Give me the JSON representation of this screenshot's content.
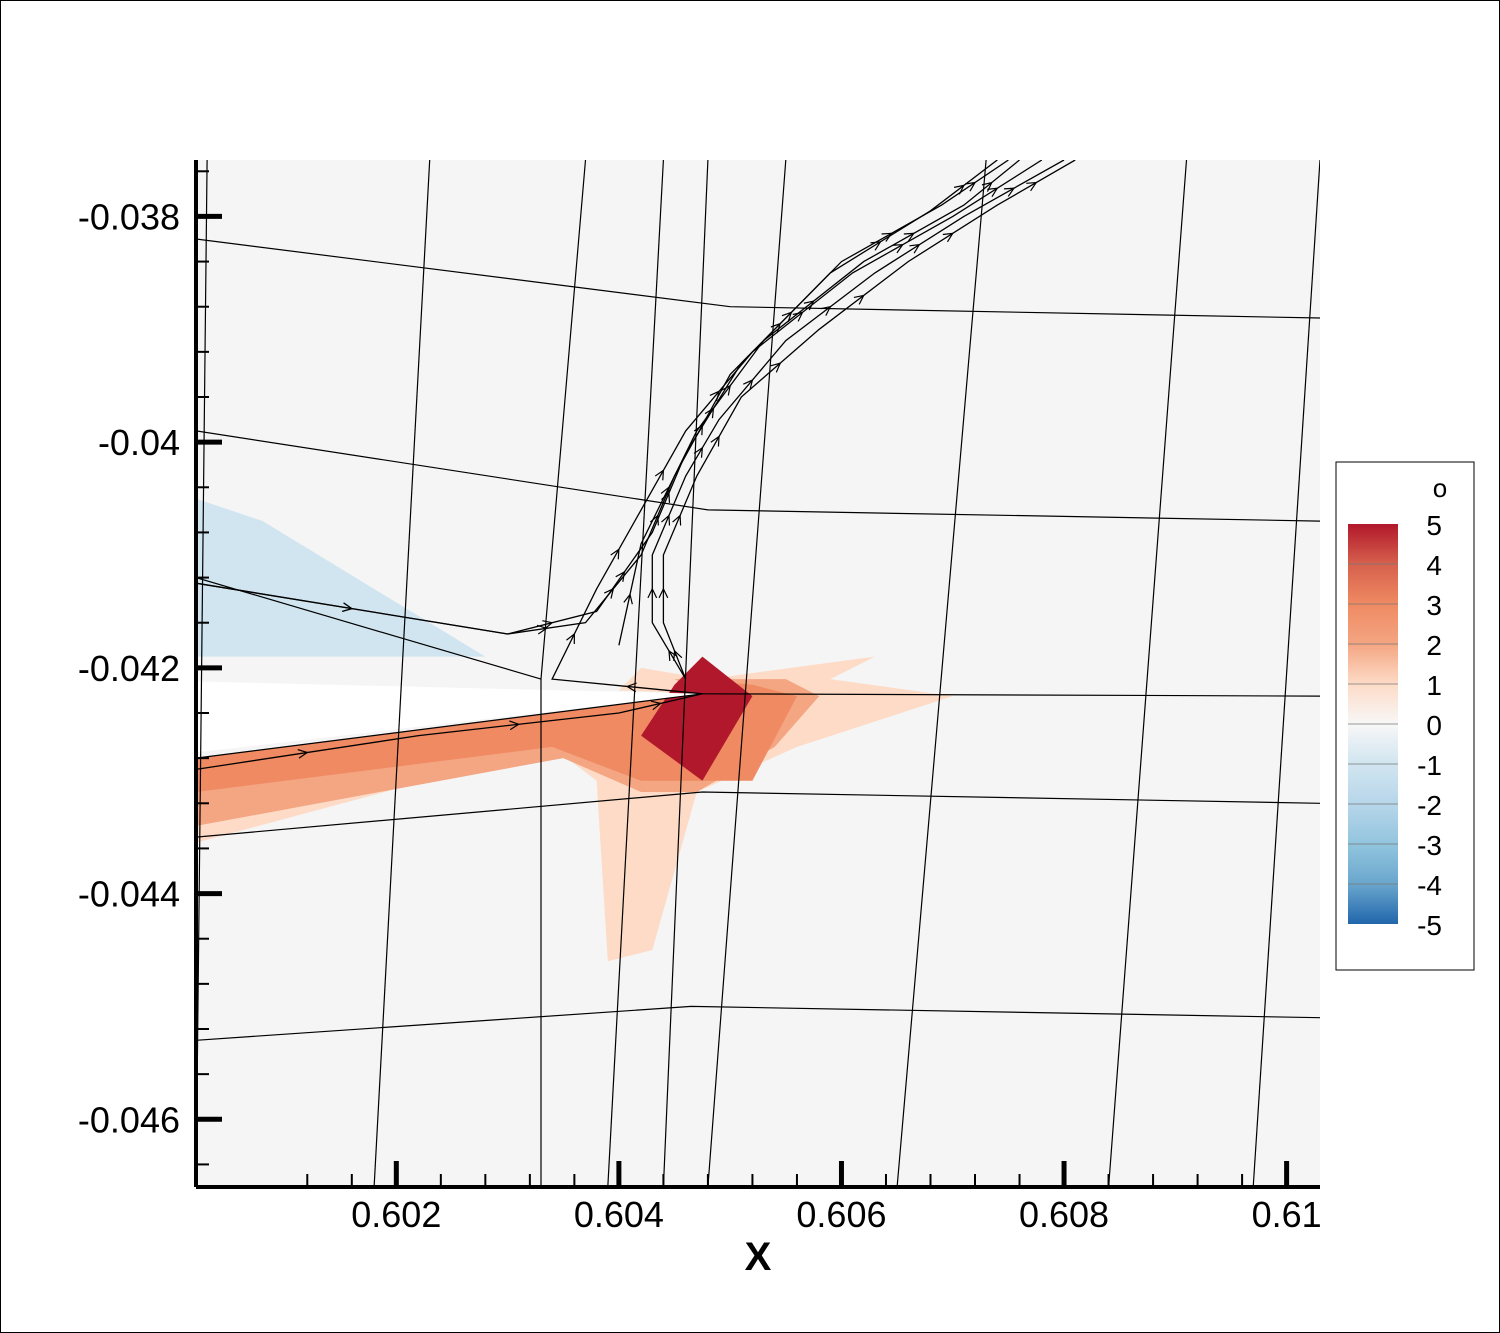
{
  "chart_data": {
    "type": "heatmap",
    "xlabel": "X",
    "ylabel": "",
    "xlim": [
      0.6002,
      0.6103
    ],
    "ylim": [
      -0.0466,
      -0.0375
    ],
    "x_ticks": [
      0.602,
      0.604,
      0.606,
      0.608,
      0.61
    ],
    "x_tick_labels": [
      "0.602",
      "0.604",
      "0.606",
      "0.608",
      "0.61"
    ],
    "y_ticks": [
      -0.038,
      -0.04,
      -0.042,
      -0.044,
      -0.046
    ],
    "y_tick_labels": [
      "-0.038",
      "-0.04",
      "-0.042",
      "-0.044",
      "-0.046"
    ],
    "grid": false,
    "legend": {
      "placement": "right",
      "title": "o",
      "levels": [
        5,
        4,
        3,
        2,
        1,
        0,
        -1,
        -2,
        -3,
        -4,
        -5
      ],
      "level_labels": [
        "5",
        "4",
        "3",
        "2",
        "1",
        "0",
        "-1",
        "-2",
        "-3",
        "-4",
        "-5"
      ],
      "colors": [
        "#b2182b",
        "#d6604d",
        "#ef8a62",
        "#f4a582",
        "#fddbc7",
        "#f7f7f7",
        "#d1e5f0",
        "#b7d6ea",
        "#92c5de",
        "#6aa6cd",
        "#2166ac"
      ]
    },
    "background_color": "#f5f5f5",
    "body_color": "#ffffff",
    "airfoil_body": [
      [
        0.6002,
        -0.04212
      ],
      [
        0.60475,
        -0.04223
      ],
      [
        0.6002,
        -0.04275
      ]
    ],
    "mesh_lines": [
      [
        [
          0.6002,
          -0.0382
        ],
        [
          0.605,
          -0.0388
        ],
        [
          0.6103,
          -0.0389
        ]
      ],
      [
        [
          0.6002,
          -0.0399
        ],
        [
          0.6048,
          -0.0406
        ],
        [
          0.6103,
          -0.0407
        ]
      ],
      [
        [
          0.6002,
          -0.0412
        ],
        [
          0.6033,
          -0.0421
        ]
      ],
      [
        [
          0.60475,
          -0.04223
        ],
        [
          0.6103,
          -0.04225
        ]
      ],
      [
        [
          0.6002,
          -0.0428
        ],
        [
          0.60475,
          -0.04223
        ]
      ],
      [
        [
          0.6002,
          -0.0435
        ],
        [
          0.60475,
          -0.0431
        ],
        [
          0.6103,
          -0.0432
        ]
      ],
      [
        [
          0.6002,
          -0.0453
        ],
        [
          0.60465,
          -0.045
        ],
        [
          0.6103,
          -0.0451
        ]
      ],
      [
        [
          0.6003,
          -0.0375
        ],
        [
          0.6002,
          -0.0466
        ]
      ],
      [
        [
          0.6023,
          -0.0375
        ],
        [
          0.6018,
          -0.0466
        ]
      ],
      [
        [
          0.6037,
          -0.0375
        ],
        [
          0.6033,
          -0.0421
        ],
        [
          0.6033,
          -0.0466
        ]
      ],
      [
        [
          0.6044,
          -0.0375
        ],
        [
          0.6039,
          -0.0466
        ]
      ],
      [
        [
          0.6048,
          -0.0375
        ],
        [
          0.6044,
          -0.0466
        ]
      ],
      [
        [
          0.6055,
          -0.0375
        ],
        [
          0.6048,
          -0.0466
        ]
      ],
      [
        [
          0.6073,
          -0.0375
        ],
        [
          0.6065,
          -0.0466
        ]
      ],
      [
        [
          0.6091,
          -0.0375
        ],
        [
          0.6084,
          -0.0466
        ]
      ],
      [
        [
          0.6103,
          -0.0375
        ],
        [
          0.6097,
          -0.0466
        ]
      ]
    ],
    "contour_regions": [
      {
        "level": 1,
        "points": [
          [
            0.6042,
            -0.042
          ],
          [
            0.6048,
            -0.0421
          ],
          [
            0.6063,
            -0.0419
          ],
          [
            0.6059,
            -0.0421
          ],
          [
            0.607,
            -0.04225
          ],
          [
            0.6056,
            -0.0427
          ],
          [
            0.6047,
            -0.0431
          ],
          [
            0.6043,
            -0.0445
          ],
          [
            0.6039,
            -0.0446
          ],
          [
            0.6038,
            -0.043
          ],
          [
            0.6034,
            -0.0427
          ],
          [
            0.6002,
            -0.04355
          ],
          [
            0.6002,
            -0.0428
          ],
          [
            0.60475,
            -0.04223
          ],
          [
            0.604,
            -0.0422
          ]
        ]
      },
      {
        "level": 2,
        "points": [
          [
            0.6045,
            -0.0421
          ],
          [
            0.6055,
            -0.0421
          ],
          [
            0.6058,
            -0.04225
          ],
          [
            0.6054,
            -0.0427
          ],
          [
            0.6047,
            -0.0431
          ],
          [
            0.6042,
            -0.0431
          ],
          [
            0.6035,
            -0.0428
          ],
          [
            0.6002,
            -0.0434
          ],
          [
            0.6002,
            -0.0428
          ],
          [
            0.60475,
            -0.04223
          ]
        ]
      },
      {
        "level": 3,
        "points": [
          [
            0.6046,
            -0.0421
          ],
          [
            0.6052,
            -0.04215
          ],
          [
            0.6056,
            -0.04225
          ],
          [
            0.6052,
            -0.043
          ],
          [
            0.6042,
            -0.043
          ],
          [
            0.6034,
            -0.0427
          ],
          [
            0.6002,
            -0.0431
          ],
          [
            0.6002,
            -0.0428
          ],
          [
            0.60475,
            -0.04223
          ]
        ]
      },
      {
        "level": 5,
        "points": [
          [
            0.6045,
            -0.04215
          ],
          [
            0.60475,
            -0.0419
          ],
          [
            0.6052,
            -0.04225
          ],
          [
            0.60475,
            -0.043
          ],
          [
            0.6042,
            -0.0426
          ]
        ]
      },
      {
        "level": -1,
        "points": [
          [
            0.6002,
            -0.0405
          ],
          [
            0.6008,
            -0.0407
          ],
          [
            0.6028,
            -0.0419
          ],
          [
            0.6002,
            -0.0419
          ]
        ]
      }
    ],
    "streamlines": [
      [
        [
          0.6002,
          -0.04125
        ],
        [
          0.603,
          -0.0417
        ],
        [
          0.6037,
          -0.0416
        ],
        [
          0.6042,
          -0.041
        ],
        [
          0.6045,
          -0.0403
        ],
        [
          0.605,
          -0.0394
        ],
        [
          0.6059,
          -0.0385
        ],
        [
          0.6068,
          -0.03795
        ],
        [
          0.6074,
          -0.0375
        ]
      ],
      [
        [
          0.6002,
          -0.04125
        ],
        [
          0.603,
          -0.0417
        ],
        [
          0.6038,
          -0.0415
        ],
        [
          0.6043,
          -0.0408
        ],
        [
          0.6046,
          -0.0401
        ],
        [
          0.6051,
          -0.0393
        ],
        [
          0.606,
          -0.0384
        ],
        [
          0.6069,
          -0.0379
        ],
        [
          0.6075,
          -0.0375
        ]
      ],
      [
        [
          0.604,
          -0.0418
        ],
        [
          0.6042,
          -0.0409
        ],
        [
          0.6047,
          -0.0399
        ],
        [
          0.6053,
          -0.0391
        ],
        [
          0.6062,
          -0.0384
        ],
        [
          0.6071,
          -0.0379
        ],
        [
          0.6076,
          -0.0375
        ]
      ],
      [
        [
          0.6046,
          -0.0421
        ],
        [
          0.6043,
          -0.0416
        ],
        [
          0.6043,
          -0.041
        ],
        [
          0.6046,
          -0.0403
        ],
        [
          0.6049,
          -0.0398
        ],
        [
          0.6055,
          -0.0391
        ],
        [
          0.6063,
          -0.0385
        ],
        [
          0.6071,
          -0.038
        ],
        [
          0.608,
          -0.0375
        ]
      ],
      [
        [
          0.6046,
          -0.0421
        ],
        [
          0.6044,
          -0.0416
        ],
        [
          0.6044,
          -0.041
        ],
        [
          0.6047,
          -0.0403
        ],
        [
          0.6051,
          -0.0396
        ],
        [
          0.6058,
          -0.039
        ],
        [
          0.6066,
          -0.0384
        ],
        [
          0.6074,
          -0.0379
        ],
        [
          0.6081,
          -0.0375
        ]
      ],
      [
        [
          0.60475,
          -0.04223
        ],
        [
          0.6034,
          -0.0421
        ],
        [
          0.6038,
          -0.0413
        ],
        [
          0.6042,
          -0.0406
        ],
        [
          0.6046,
          -0.0399
        ],
        [
          0.6052,
          -0.0392
        ],
        [
          0.6061,
          -0.0385
        ],
        [
          0.607,
          -0.038
        ],
        [
          0.6078,
          -0.0375
        ]
      ],
      [
        [
          0.6002,
          -0.0429
        ],
        [
          0.6022,
          -0.0426
        ],
        [
          0.604,
          -0.0424
        ],
        [
          0.60475,
          -0.04223
        ]
      ]
    ]
  }
}
